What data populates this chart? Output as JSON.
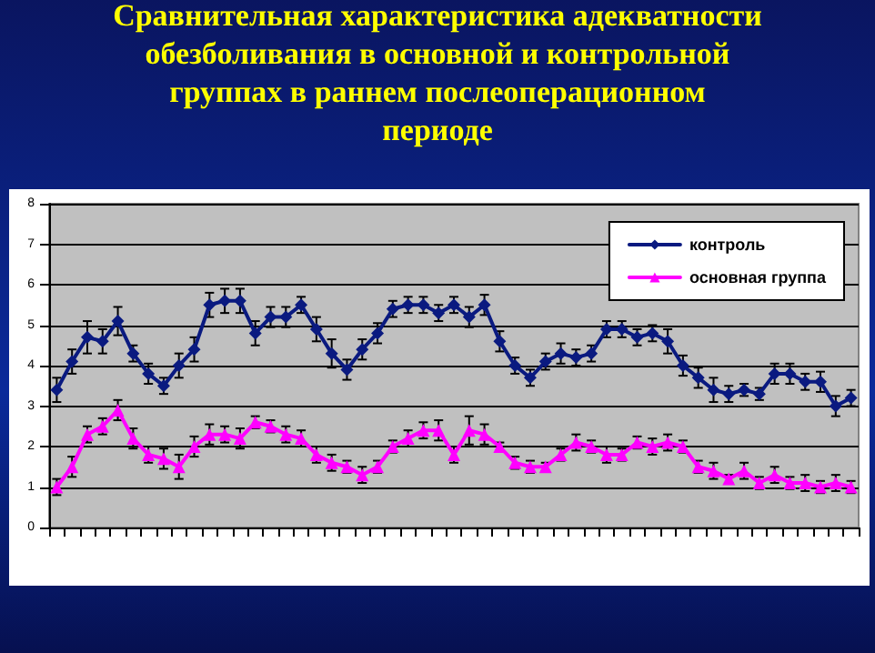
{
  "chart_data": {
    "type": "line",
    "title": "Сравнительная характеристика адекватности обезболивания в основной и контрольной группах в раннем послеоперационном периоде",
    "categories": [
      null,
      null,
      null,
      null,
      null,
      null,
      null,
      null,
      null,
      null,
      null,
      null,
      null,
      null,
      null,
      null,
      null,
      null,
      null,
      null,
      null,
      null,
      null,
      null,
      null,
      null,
      null,
      null,
      null,
      null,
      null,
      null,
      null,
      null,
      null,
      null,
      null,
      null,
      null,
      null,
      null,
      null,
      null,
      null,
      null,
      null,
      null,
      null,
      null,
      null,
      null,
      null,
      null
    ],
    "series": [
      {
        "name": "контроль",
        "color": "#0a1a80",
        "marker": "diamond",
        "values": [
          3.4,
          4.1,
          4.7,
          4.6,
          5.1,
          4.3,
          3.8,
          3.5,
          4.0,
          4.4,
          5.5,
          5.6,
          5.6,
          4.8,
          5.2,
          5.2,
          5.5,
          4.9,
          4.3,
          3.9,
          4.4,
          4.8,
          5.4,
          5.5,
          5.5,
          5.3,
          5.5,
          5.2,
          5.5,
          4.6,
          4.0,
          3.7,
          4.1,
          4.3,
          4.2,
          4.3,
          4.9,
          4.9,
          4.7,
          4.8,
          4.6,
          4.0,
          3.7,
          3.4,
          3.3,
          3.4,
          3.3,
          3.8,
          3.8,
          3.6,
          3.6,
          3.0,
          3.2
        ],
        "errors": [
          0.3,
          0.3,
          0.4,
          0.3,
          0.35,
          0.2,
          0.25,
          0.2,
          0.3,
          0.3,
          0.3,
          0.3,
          0.3,
          0.3,
          0.25,
          0.25,
          0.2,
          0.3,
          0.35,
          0.25,
          0.25,
          0.25,
          0.2,
          0.2,
          0.2,
          0.2,
          0.2,
          0.25,
          0.25,
          0.25,
          0.2,
          0.2,
          0.2,
          0.25,
          0.2,
          0.2,
          0.2,
          0.2,
          0.2,
          0.2,
          0.3,
          0.25,
          0.25,
          0.3,
          0.2,
          0.15,
          0.15,
          0.25,
          0.25,
          0.2,
          0.25,
          0.25,
          0.2
        ]
      },
      {
        "name": "основная группа",
        "color": "#ff00ff",
        "marker": "triangle",
        "values": [
          1.0,
          1.5,
          2.3,
          2.5,
          2.9,
          2.2,
          1.8,
          1.7,
          1.5,
          2.0,
          2.3,
          2.3,
          2.2,
          2.6,
          2.5,
          2.3,
          2.2,
          1.8,
          1.6,
          1.5,
          1.3,
          1.5,
          2.0,
          2.2,
          2.4,
          2.4,
          1.8,
          2.4,
          2.3,
          2.0,
          1.6,
          1.5,
          1.5,
          1.8,
          2.1,
          2.0,
          1.8,
          1.8,
          2.1,
          2.0,
          2.1,
          2.0,
          1.5,
          1.4,
          1.2,
          1.4,
          1.1,
          1.3,
          1.1,
          1.1,
          1.0,
          1.1,
          1.0
        ],
        "errors": [
          0.2,
          0.25,
          0.2,
          0.2,
          0.25,
          0.25,
          0.2,
          0.25,
          0.3,
          0.25,
          0.25,
          0.2,
          0.25,
          0.15,
          0.15,
          0.2,
          0.2,
          0.2,
          0.2,
          0.15,
          0.2,
          0.15,
          0.15,
          0.2,
          0.2,
          0.25,
          0.2,
          0.35,
          0.25,
          0.1,
          0.15,
          0.15,
          0.1,
          0.15,
          0.2,
          0.15,
          0.2,
          0.15,
          0.15,
          0.2,
          0.2,
          0.15,
          0.15,
          0.2,
          0.1,
          0.2,
          0.15,
          0.2,
          0.15,
          0.2,
          0.15,
          0.2,
          0.15
        ]
      }
    ],
    "ylim": [
      0,
      8
    ],
    "yticks": [
      0,
      1,
      2,
      3,
      4,
      5,
      6,
      7,
      8
    ],
    "grid": "y",
    "legend": "top right",
    "tick_labels": "y",
    "line_style": "solid"
  }
}
